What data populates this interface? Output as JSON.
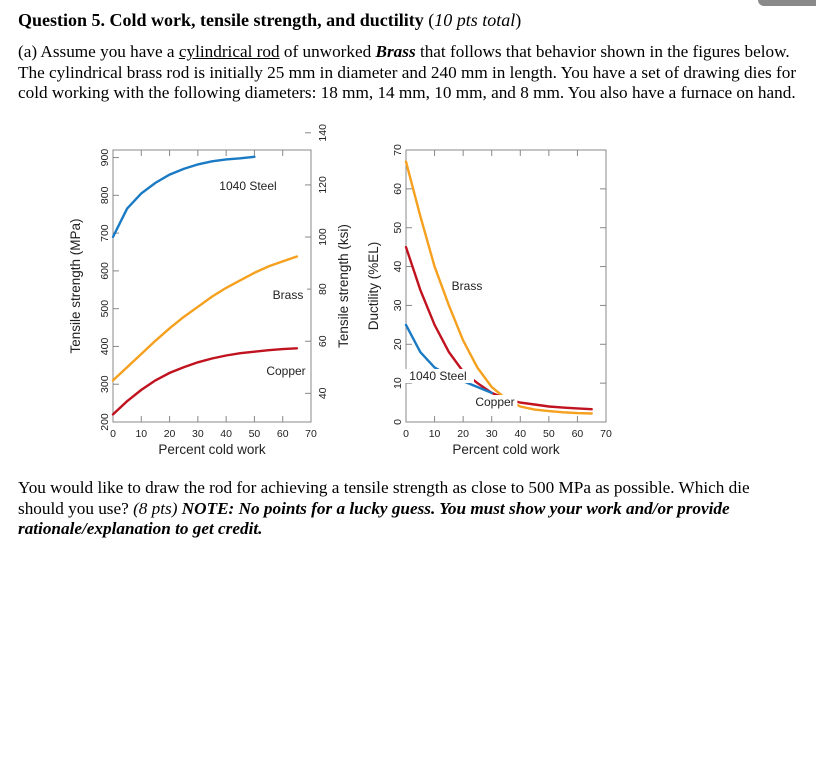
{
  "question": {
    "title": "Question 5. Cold work, tensile strength, and ductility",
    "points_open": "(",
    "points": "10 pts total",
    "points_close": ")"
  },
  "part_a": {
    "prefix": "(a) Assume you have a ",
    "underlined": "cylindrical rod",
    "middle": " of unworked ",
    "material": "Brass",
    "rest": " that follows that behavior shown in the figures below. The cylindrical brass rod is initially 25 mm in diameter and 240 mm in length. You have a set of drawing dies for cold working with the following diameters: 18 mm, 14 mm, 10 mm, and 8 mm. You also have a furnace on hand."
  },
  "part_b": {
    "text": "You would like to draw the rod for achieving a tensile strength as close to 500 MPa as possible. Which die should you use? ",
    "points": "(8 pts)",
    "note": " NOTE: No points for a lucky guess. You must show your work and/or provide rationale/explanation to get credit."
  },
  "chart_data": [
    {
      "type": "line",
      "xlabel": "Percent cold work",
      "ylabel": "Tensile strength (MPa)",
      "y2label": "Tensile strength (ksi)",
      "xlim": [
        0,
        70
      ],
      "ylim": [
        200,
        920
      ],
      "y2lim": [
        29,
        133.4
      ],
      "xticks": [
        0,
        10,
        20,
        30,
        40,
        50,
        60,
        70
      ],
      "yticks": [
        200,
        300,
        400,
        500,
        600,
        700,
        800,
        900
      ],
      "y2ticks": [
        40,
        60,
        80,
        100,
        120,
        140
      ],
      "grid": true,
      "series": [
        {
          "name": "1040 Steel",
          "color": "#1a7bc4",
          "x": [
            0,
            5,
            10,
            15,
            20,
            25,
            30,
            35,
            40,
            45,
            50
          ],
          "y": [
            690,
            765,
            805,
            833,
            855,
            870,
            882,
            890,
            895,
            898,
            902
          ]
        },
        {
          "name": "Brass",
          "color": "#f5a01f",
          "x": [
            0,
            5,
            10,
            15,
            20,
            25,
            30,
            35,
            40,
            45,
            50,
            55,
            60,
            65
          ],
          "y": [
            310,
            345,
            380,
            415,
            448,
            478,
            505,
            532,
            555,
            575,
            595,
            612,
            625,
            638
          ]
        },
        {
          "name": "Copper",
          "color": "#c0121f",
          "x": [
            0,
            5,
            10,
            15,
            20,
            25,
            30,
            35,
            40,
            45,
            50,
            55,
            60,
            65
          ],
          "y": [
            220,
            255,
            285,
            310,
            330,
            345,
            358,
            368,
            376,
            382,
            386,
            390,
            393,
            395
          ]
        }
      ],
      "labels": [
        "1040 Steel",
        "Brass",
        "Copper"
      ]
    },
    {
      "type": "line",
      "xlabel": "Percent cold work",
      "ylabel": "Ductility (%EL)",
      "xlim": [
        0,
        70
      ],
      "ylim": [
        0,
        70
      ],
      "xticks": [
        0,
        10,
        20,
        30,
        40,
        50,
        60,
        70
      ],
      "yticks": [
        0,
        10,
        20,
        30,
        40,
        50,
        60,
        70
      ],
      "grid": true,
      "series": [
        {
          "name": "Brass",
          "color": "#f5a01f",
          "x": [
            0,
            5,
            10,
            15,
            20,
            25,
            30,
            35,
            40,
            45,
            50,
            55,
            60,
            65
          ],
          "y": [
            67,
            53,
            40,
            30,
            21,
            14,
            9,
            6,
            4,
            3.2,
            2.8,
            2.5,
            2.3,
            2.2
          ]
        },
        {
          "name": "Copper",
          "color": "#c0121f",
          "x": [
            0,
            5,
            10,
            15,
            20,
            25,
            30,
            35,
            40,
            45,
            50,
            55,
            60,
            65
          ],
          "y": [
            45,
            34,
            25,
            18,
            13,
            10,
            7.5,
            6,
            5,
            4.5,
            4,
            3.7,
            3.5,
            3.3
          ]
        },
        {
          "name": "1040 Steel",
          "color": "#1a7bc4",
          "x": [
            0,
            5,
            10,
            15,
            20,
            25,
            30
          ],
          "y": [
            25,
            18,
            14,
            12,
            10.5,
            9,
            7.5
          ]
        }
      ],
      "labels": [
        "Brass",
        "1040 Steel",
        "Copper"
      ]
    }
  ]
}
